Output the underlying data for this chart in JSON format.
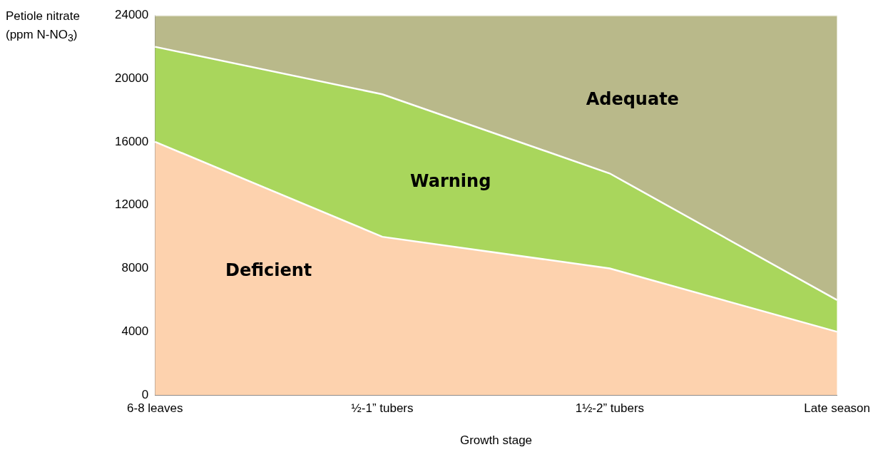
{
  "chart_data": {
    "type": "area",
    "stacked": true,
    "xlabel": "Growth stage",
    "ylabel": "Petiole nitrate (ppm N-NO$_{3}$)",
    "categories": [
      "6-8 leaves",
      "½-1” tubers",
      "1½-2” tubers",
      "Late season"
    ],
    "series": [
      {
        "name": "Deficient",
        "color": "#fdd2ae",
        "values": [
          16000,
          10000,
          8000,
          4000
        ]
      },
      {
        "name": "Warning",
        "color": "#a9d65c",
        "values": [
          6000,
          9000,
          6000,
          2000
        ]
      },
      {
        "name": "Adequate",
        "color": "#b9b98a",
        "values": [
          2000,
          5000,
          10000,
          18000
        ]
      }
    ],
    "ylim": [
      0,
      24000
    ],
    "yticks": [
      0,
      4000,
      8000,
      12000,
      16000,
      20000,
      24000
    ],
    "grid": false,
    "legend": false
  }
}
